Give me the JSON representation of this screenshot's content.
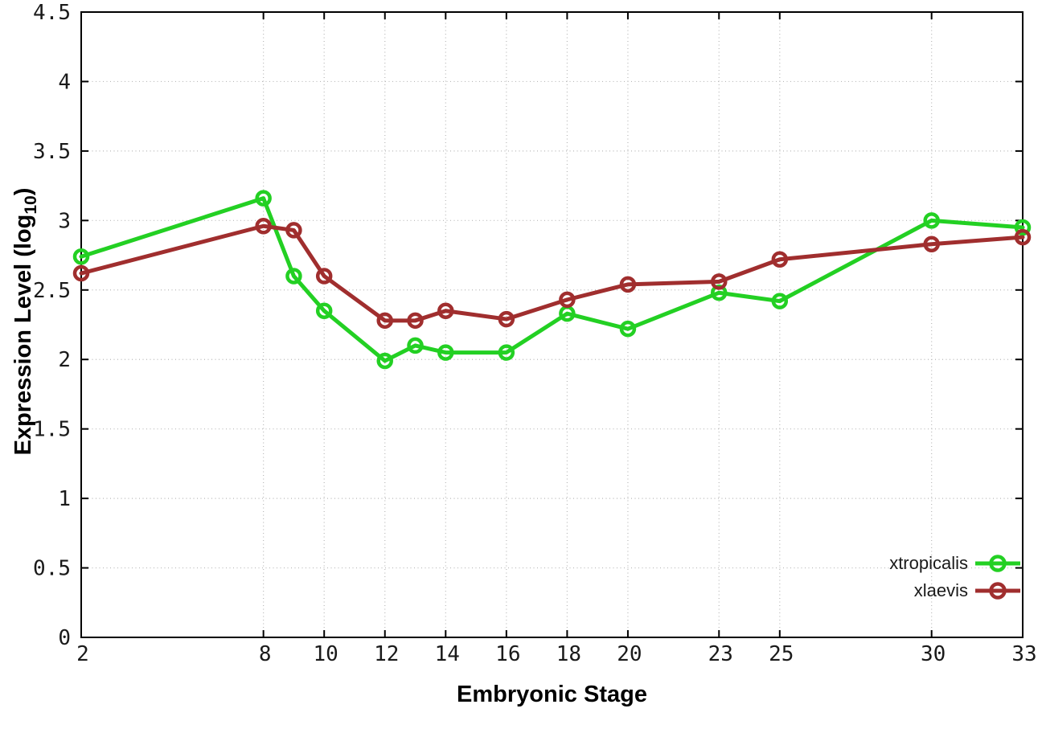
{
  "figure": {
    "background": "#ffffff"
  },
  "chart_data": {
    "type": "line",
    "title": "",
    "xlabel": "Embryonic Stage",
    "ylabel": "Expression Level (log10)",
    "ylabel_parts": {
      "pre": "Expression Level (log",
      "sub": "10",
      "post": ")"
    },
    "x": [
      2,
      8,
      9,
      10,
      12,
      13,
      14,
      16,
      18,
      20,
      23,
      25,
      30,
      33
    ],
    "series": [
      {
        "name": "xtropicalis",
        "color": "#23d023",
        "values": [
          2.74,
          3.16,
          2.6,
          2.35,
          1.99,
          2.1,
          2.05,
          2.05,
          2.33,
          2.22,
          2.48,
          2.42,
          3.0,
          2.95
        ]
      },
      {
        "name": "xlaevis",
        "color": "#a02e2e",
        "values": [
          2.62,
          2.96,
          2.93,
          2.6,
          2.28,
          2.28,
          2.35,
          2.29,
          2.43,
          2.54,
          2.56,
          2.72,
          2.83,
          2.88
        ]
      }
    ],
    "xlim": [
      2,
      33
    ],
    "ylim": [
      0,
      4.5
    ],
    "xticks": [
      2,
      8,
      10,
      12,
      14,
      16,
      18,
      20,
      23,
      25,
      30,
      33
    ],
    "yticks": [
      0,
      0.5,
      1,
      1.5,
      2,
      2.5,
      3,
      3.5,
      4,
      4.5
    ],
    "grid": true,
    "legend_position": "bottom-right",
    "marker": "open-circle",
    "colors": {
      "border": "#000000",
      "grid": "#b8b8b8",
      "tick_text": "#1a1a1a",
      "axis_title": "#000000"
    }
  }
}
